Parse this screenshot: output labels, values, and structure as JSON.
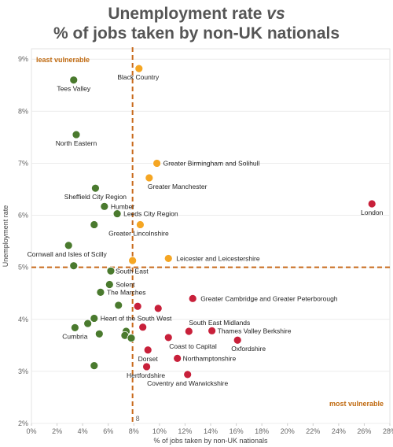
{
  "title": {
    "prefix": "Unemployment rate ",
    "vs": "vs",
    "line2": "% of jobs taken by non-UK nationals"
  },
  "chart_data": {
    "type": "scatter",
    "xlabel": "% of jobs taken by non-UK nationals",
    "ylabel": "Unemployment rate",
    "xlim": [
      0,
      28
    ],
    "ylim": [
      2,
      9.2
    ],
    "x_ticks": [
      "0%",
      "2%",
      "4%",
      "6%",
      "8%",
      "10%",
      "12%",
      "14%",
      "16%",
      "18%",
      "20%",
      "22%",
      "24%",
      "26%",
      "28%"
    ],
    "y_ticks": [
      "2%",
      "3%",
      "4%",
      "5%",
      "6%",
      "7%",
      "8%",
      "9%"
    ],
    "reference_lines": {
      "x": 7.9,
      "y": 5.0,
      "x_marker_label": "8"
    },
    "corner_labels": {
      "top_left": "least vulnerable",
      "bottom_right": "most vulnerable"
    },
    "colors": {
      "green": "#4a7a2e",
      "amber": "#f5a623",
      "red": "#c8203a",
      "reference": "#c8691a"
    },
    "points": [
      {
        "name": "Tees Valley",
        "x": 3.3,
        "y": 8.6,
        "color": "green"
      },
      {
        "name": "North Eastern",
        "x": 3.5,
        "y": 7.55,
        "color": "green"
      },
      {
        "name": "Sheffield City Region",
        "x": 5.0,
        "y": 6.52,
        "color": "green"
      },
      {
        "name": "Humber",
        "x": 5.7,
        "y": 6.17,
        "color": "green"
      },
      {
        "name": "Leeds City Region",
        "x": 6.7,
        "y": 6.03,
        "color": "green"
      },
      {
        "name": "",
        "x": 4.9,
        "y": 5.82,
        "color": "green"
      },
      {
        "name": "Cornwall and Isles of Scilly",
        "x": 2.9,
        "y": 5.42,
        "color": "green"
      },
      {
        "name": "",
        "x": 3.3,
        "y": 5.03,
        "color": "green"
      },
      {
        "name": "South East",
        "x": 6.2,
        "y": 4.93,
        "color": "green"
      },
      {
        "name": "Solent",
        "x": 6.1,
        "y": 4.67,
        "color": "green"
      },
      {
        "name": "The Marches",
        "x": 5.4,
        "y": 4.52,
        "color": "green"
      },
      {
        "name": "",
        "x": 6.8,
        "y": 4.27,
        "color": "green"
      },
      {
        "name": "Heart of the South West",
        "x": 4.9,
        "y": 4.02,
        "color": "green"
      },
      {
        "name": "",
        "x": 4.4,
        "y": 3.92,
        "color": "green"
      },
      {
        "name": "Cumbria",
        "x": 3.4,
        "y": 3.84,
        "color": "green"
      },
      {
        "name": "",
        "x": 5.3,
        "y": 3.72,
        "color": "green"
      },
      {
        "name": "",
        "x": 7.4,
        "y": 3.77,
        "color": "green"
      },
      {
        "name": "",
        "x": 7.3,
        "y": 3.69,
        "color": "green"
      },
      {
        "name": "",
        "x": 7.8,
        "y": 3.64,
        "color": "green"
      },
      {
        "name": "",
        "x": 4.9,
        "y": 3.11,
        "color": "green"
      },
      {
        "name": "Black Country",
        "x": 8.4,
        "y": 8.82,
        "color": "amber"
      },
      {
        "name": "Greater Birmingham and Solihull",
        "x": 9.8,
        "y": 7.0,
        "color": "amber"
      },
      {
        "name": "Greater Manchester",
        "x": 9.2,
        "y": 6.72,
        "color": "amber"
      },
      {
        "name": "Greater Lincolnshire",
        "x": 8.5,
        "y": 5.82,
        "color": "amber"
      },
      {
        "name": "Leicester and Leicestershire",
        "x": 10.7,
        "y": 5.17,
        "color": "amber"
      },
      {
        "name": "",
        "x": 7.9,
        "y": 5.13,
        "color": "amber"
      },
      {
        "name": "London",
        "x": 26.6,
        "y": 6.22,
        "color": "red"
      },
      {
        "name": "Greater Cambridge and Greater Peterborough",
        "x": 12.6,
        "y": 4.4,
        "color": "red"
      },
      {
        "name": "",
        "x": 8.3,
        "y": 4.25,
        "color": "red"
      },
      {
        "name": "",
        "x": 9.9,
        "y": 4.21,
        "color": "red"
      },
      {
        "name": "",
        "x": 8.7,
        "y": 3.85,
        "color": "red"
      },
      {
        "name": "South East Midlands",
        "x": 12.3,
        "y": 3.77,
        "color": "red"
      },
      {
        "name": "Thames Valley Berkshire",
        "x": 14.1,
        "y": 3.78,
        "color": "red"
      },
      {
        "name": "Coast to Capital",
        "x": 10.7,
        "y": 3.65,
        "color": "red"
      },
      {
        "name": "Oxfordshire",
        "x": 16.1,
        "y": 3.6,
        "color": "red"
      },
      {
        "name": "Dorset",
        "x": 9.1,
        "y": 3.41,
        "color": "red"
      },
      {
        "name": "Northamptonshire",
        "x": 11.4,
        "y": 3.25,
        "color": "red"
      },
      {
        "name": "Hertfordshire",
        "x": 9.0,
        "y": 3.09,
        "color": "red"
      },
      {
        "name": "Coventry and Warwickshire",
        "x": 12.2,
        "y": 2.94,
        "color": "red"
      }
    ]
  }
}
